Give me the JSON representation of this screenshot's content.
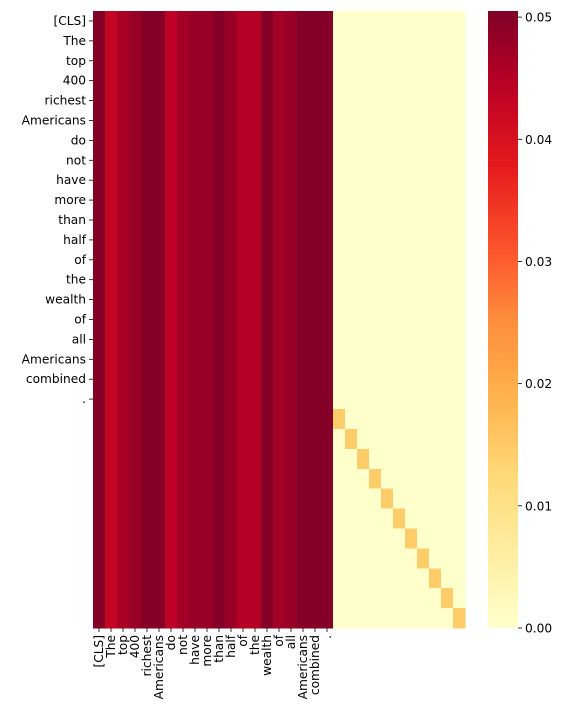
{
  "chart_data": {
    "type": "heatmap",
    "title": "",
    "xlabel": "",
    "ylabel": "",
    "x_tick_labels": [
      "[CLS]",
      "The",
      "top",
      "400",
      "richest",
      "Americans",
      "do",
      "not",
      "have",
      "more",
      "than",
      "half",
      "of",
      "the",
      "wealth",
      "of",
      "all",
      "Americans",
      "combined",
      "."
    ],
    "y_tick_labels": [
      "[CLS]",
      "The",
      "top",
      "400",
      "richest",
      "Americans",
      "do",
      "not",
      "have",
      "more",
      "than",
      "half",
      "of",
      "the",
      "wealth",
      "of",
      "all",
      "Americans",
      "combined",
      "."
    ],
    "n_rows": 31,
    "n_cols": 31,
    "token_count": 20,
    "first_block_column_values": [
      0.05,
      0.043,
      0.046,
      0.048,
      0.05,
      0.05,
      0.044,
      0.047,
      0.048,
      0.048,
      0.05,
      0.048,
      0.045,
      0.045,
      0.05,
      0.047,
      0.048,
      0.05,
      0.05,
      0.05
    ],
    "second_block_column_values": [
      0.05,
      0.043,
      0.046,
      0.048,
      0.05,
      0.05,
      0.044,
      0.047,
      0.048,
      0.048,
      0.05,
      0.048,
      0.045,
      0.045,
      0.05,
      0.047,
      0.048,
      0.05,
      0.05,
      0.05
    ],
    "pad_background_value": 0.0,
    "pad_diagonal_value": 0.0145,
    "colorbar": {
      "colormap": "YlOrRd",
      "vmin": 0.0,
      "vmax": 0.0505,
      "ticks": [
        0.0,
        0.01,
        0.02,
        0.03,
        0.04,
        0.05
      ],
      "tick_labels": [
        "0.00",
        "0.01",
        "0.02",
        "0.03",
        "0.04",
        "0.05"
      ]
    }
  }
}
